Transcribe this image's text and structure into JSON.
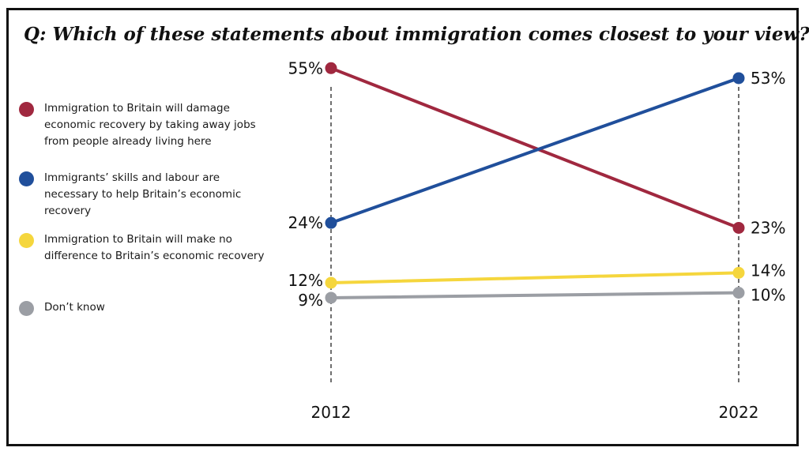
{
  "title": "Q: Which of these statements about immigration comes closest to your view?",
  "chart_data": {
    "type": "line",
    "x": [
      "2012",
      "2022"
    ],
    "series": [
      {
        "name": "Immigration to Britain will damage economic recovery by taking away jobs from people already living here",
        "values": [
          55,
          23
        ],
        "labels": [
          "55%",
          "23%"
        ],
        "color": "#a0283f"
      },
      {
        "name": "Immigrants’ skills and labour are necessary to help Britain’s economic recovery",
        "values": [
          24,
          53
        ],
        "labels": [
          "24%",
          "53%"
        ],
        "color": "#204f9b"
      },
      {
        "name": "Immigration to Britain will make no difference to Britain’s economic recovery",
        "values": [
          12,
          14
        ],
        "labels": [
          "12%",
          "14%"
        ],
        "color": "#f5d63d"
      },
      {
        "name": "Don’t know",
        "values": [
          9,
          10
        ],
        "labels": [
          "9%",
          "10%"
        ],
        "color": "#9b9ea4"
      }
    ],
    "ylim": [
      0,
      60
    ],
    "grid": false,
    "reference_lines": "dashed vertical line at each year",
    "legend_position": "left"
  }
}
